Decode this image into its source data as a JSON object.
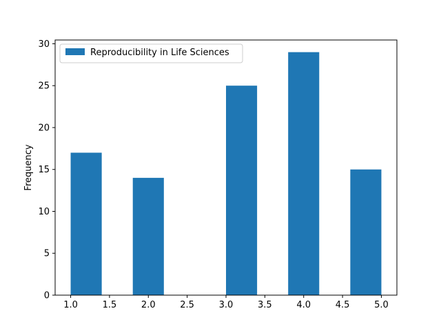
{
  "chart_data": {
    "type": "bar",
    "title": "",
    "xlabel": "",
    "ylabel": "Frequency",
    "xlim": [
      0.8,
      5.2
    ],
    "ylim": [
      0,
      30.45
    ],
    "grid": false,
    "legend_position": "top-left",
    "bar_color": "#1f77b4",
    "x_ticks": [
      1.0,
      1.5,
      2.0,
      2.5,
      3.0,
      3.5,
      4.0,
      4.5,
      5.0
    ],
    "x_tick_labels": [
      "1.0",
      "1.5",
      "2.0",
      "2.5",
      "3.0",
      "3.5",
      "4.0",
      "4.5",
      "5.0"
    ],
    "y_ticks": [
      0,
      5,
      10,
      15,
      20,
      25,
      30
    ],
    "y_tick_labels": [
      "0",
      "5",
      "10",
      "15",
      "20",
      "25",
      "30"
    ],
    "series": [
      {
        "name": "Reproducibility in Life Sciences",
        "bins": [
          {
            "x_start": 1.0,
            "x_end": 1.4,
            "value": 17
          },
          {
            "x_start": 1.4,
            "x_end": 1.8,
            "value": 0
          },
          {
            "x_start": 1.8,
            "x_end": 2.2,
            "value": 14
          },
          {
            "x_start": 2.2,
            "x_end": 2.6,
            "value": 0
          },
          {
            "x_start": 2.6,
            "x_end": 3.0,
            "value": 0
          },
          {
            "x_start": 3.0,
            "x_end": 3.4,
            "value": 25
          },
          {
            "x_start": 3.4,
            "x_end": 3.8,
            "value": 0
          },
          {
            "x_start": 3.8,
            "x_end": 4.2,
            "value": 29
          },
          {
            "x_start": 4.2,
            "x_end": 4.6,
            "value": 0
          },
          {
            "x_start": 4.6,
            "x_end": 5.0,
            "value": 15
          }
        ]
      }
    ]
  }
}
